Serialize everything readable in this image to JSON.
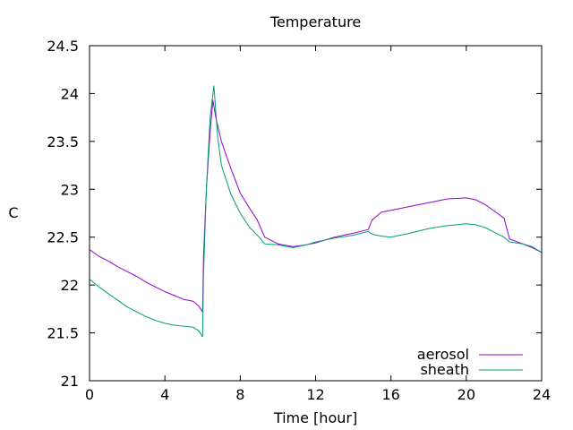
{
  "chart_data": {
    "type": "line",
    "title": "Temperature",
    "xlabel": "Time [hour]",
    "ylabel": "C",
    "xlim": [
      0,
      24
    ],
    "ylim": [
      21,
      24.5
    ],
    "xticks": [
      0,
      4,
      8,
      12,
      16,
      20,
      24
    ],
    "yticks": [
      21,
      21.5,
      22,
      22.5,
      23,
      23.5,
      24,
      24.5
    ],
    "ytick_labels": [
      "21",
      "21.5",
      "22",
      "22.5",
      "23",
      "23.5",
      "24",
      "24.5"
    ],
    "grid": false,
    "legend_position": "bottom-right",
    "series": [
      {
        "name": "aerosol",
        "color": "#9400d3",
        "x": [
          0,
          0.5,
          1,
          1.5,
          2,
          2.5,
          3,
          3.5,
          4,
          4.5,
          5,
          5.5,
          5.8,
          6.0,
          6.05,
          6.2,
          6.4,
          6.55,
          6.7,
          7.0,
          7.5,
          8.0,
          8.5,
          8.9,
          9.3,
          10,
          10.8,
          11.5,
          12,
          13,
          14,
          14.8,
          15.0,
          15.5,
          16,
          17,
          18,
          19,
          20,
          20.5,
          21,
          21.5,
          22,
          22.3,
          23,
          23.5,
          24
        ],
        "y": [
          22.37,
          22.3,
          22.25,
          22.19,
          22.14,
          22.09,
          22.03,
          21.98,
          21.93,
          21.89,
          21.85,
          21.83,
          21.78,
          21.72,
          22.3,
          23.0,
          23.6,
          23.93,
          23.75,
          23.5,
          23.22,
          22.96,
          22.8,
          22.68,
          22.5,
          22.43,
          22.4,
          22.42,
          22.44,
          22.5,
          22.54,
          22.58,
          22.68,
          22.76,
          22.78,
          22.82,
          22.86,
          22.9,
          22.91,
          22.89,
          22.84,
          22.77,
          22.7,
          22.48,
          22.43,
          22.39,
          22.34
        ]
      },
      {
        "name": "sheath",
        "color": "#009e73",
        "x": [
          0,
          0.5,
          1,
          1.5,
          2,
          2.5,
          3,
          3.5,
          4,
          4.5,
          5,
          5.5,
          5.8,
          6.0,
          6.05,
          6.2,
          6.4,
          6.6,
          6.8,
          7.0,
          7.5,
          8.0,
          8.5,
          9.0,
          9.3,
          10,
          10.8,
          11.5,
          12,
          13,
          14,
          14.8,
          15.0,
          15.5,
          16,
          17,
          18,
          19,
          20,
          20.5,
          21,
          21.5,
          22,
          22.3,
          23,
          23.5,
          24
        ],
        "y": [
          22.06,
          21.98,
          21.91,
          21.84,
          21.77,
          21.72,
          21.67,
          21.63,
          21.6,
          21.58,
          21.57,
          21.56,
          21.52,
          21.46,
          22.1,
          23.0,
          23.75,
          24.08,
          23.55,
          23.25,
          22.95,
          22.75,
          22.6,
          22.5,
          22.43,
          22.42,
          22.39,
          22.42,
          22.45,
          22.49,
          22.52,
          22.56,
          22.53,
          22.51,
          22.5,
          22.54,
          22.59,
          22.62,
          22.64,
          22.63,
          22.6,
          22.55,
          22.5,
          22.45,
          22.43,
          22.4,
          22.34
        ]
      }
    ]
  }
}
